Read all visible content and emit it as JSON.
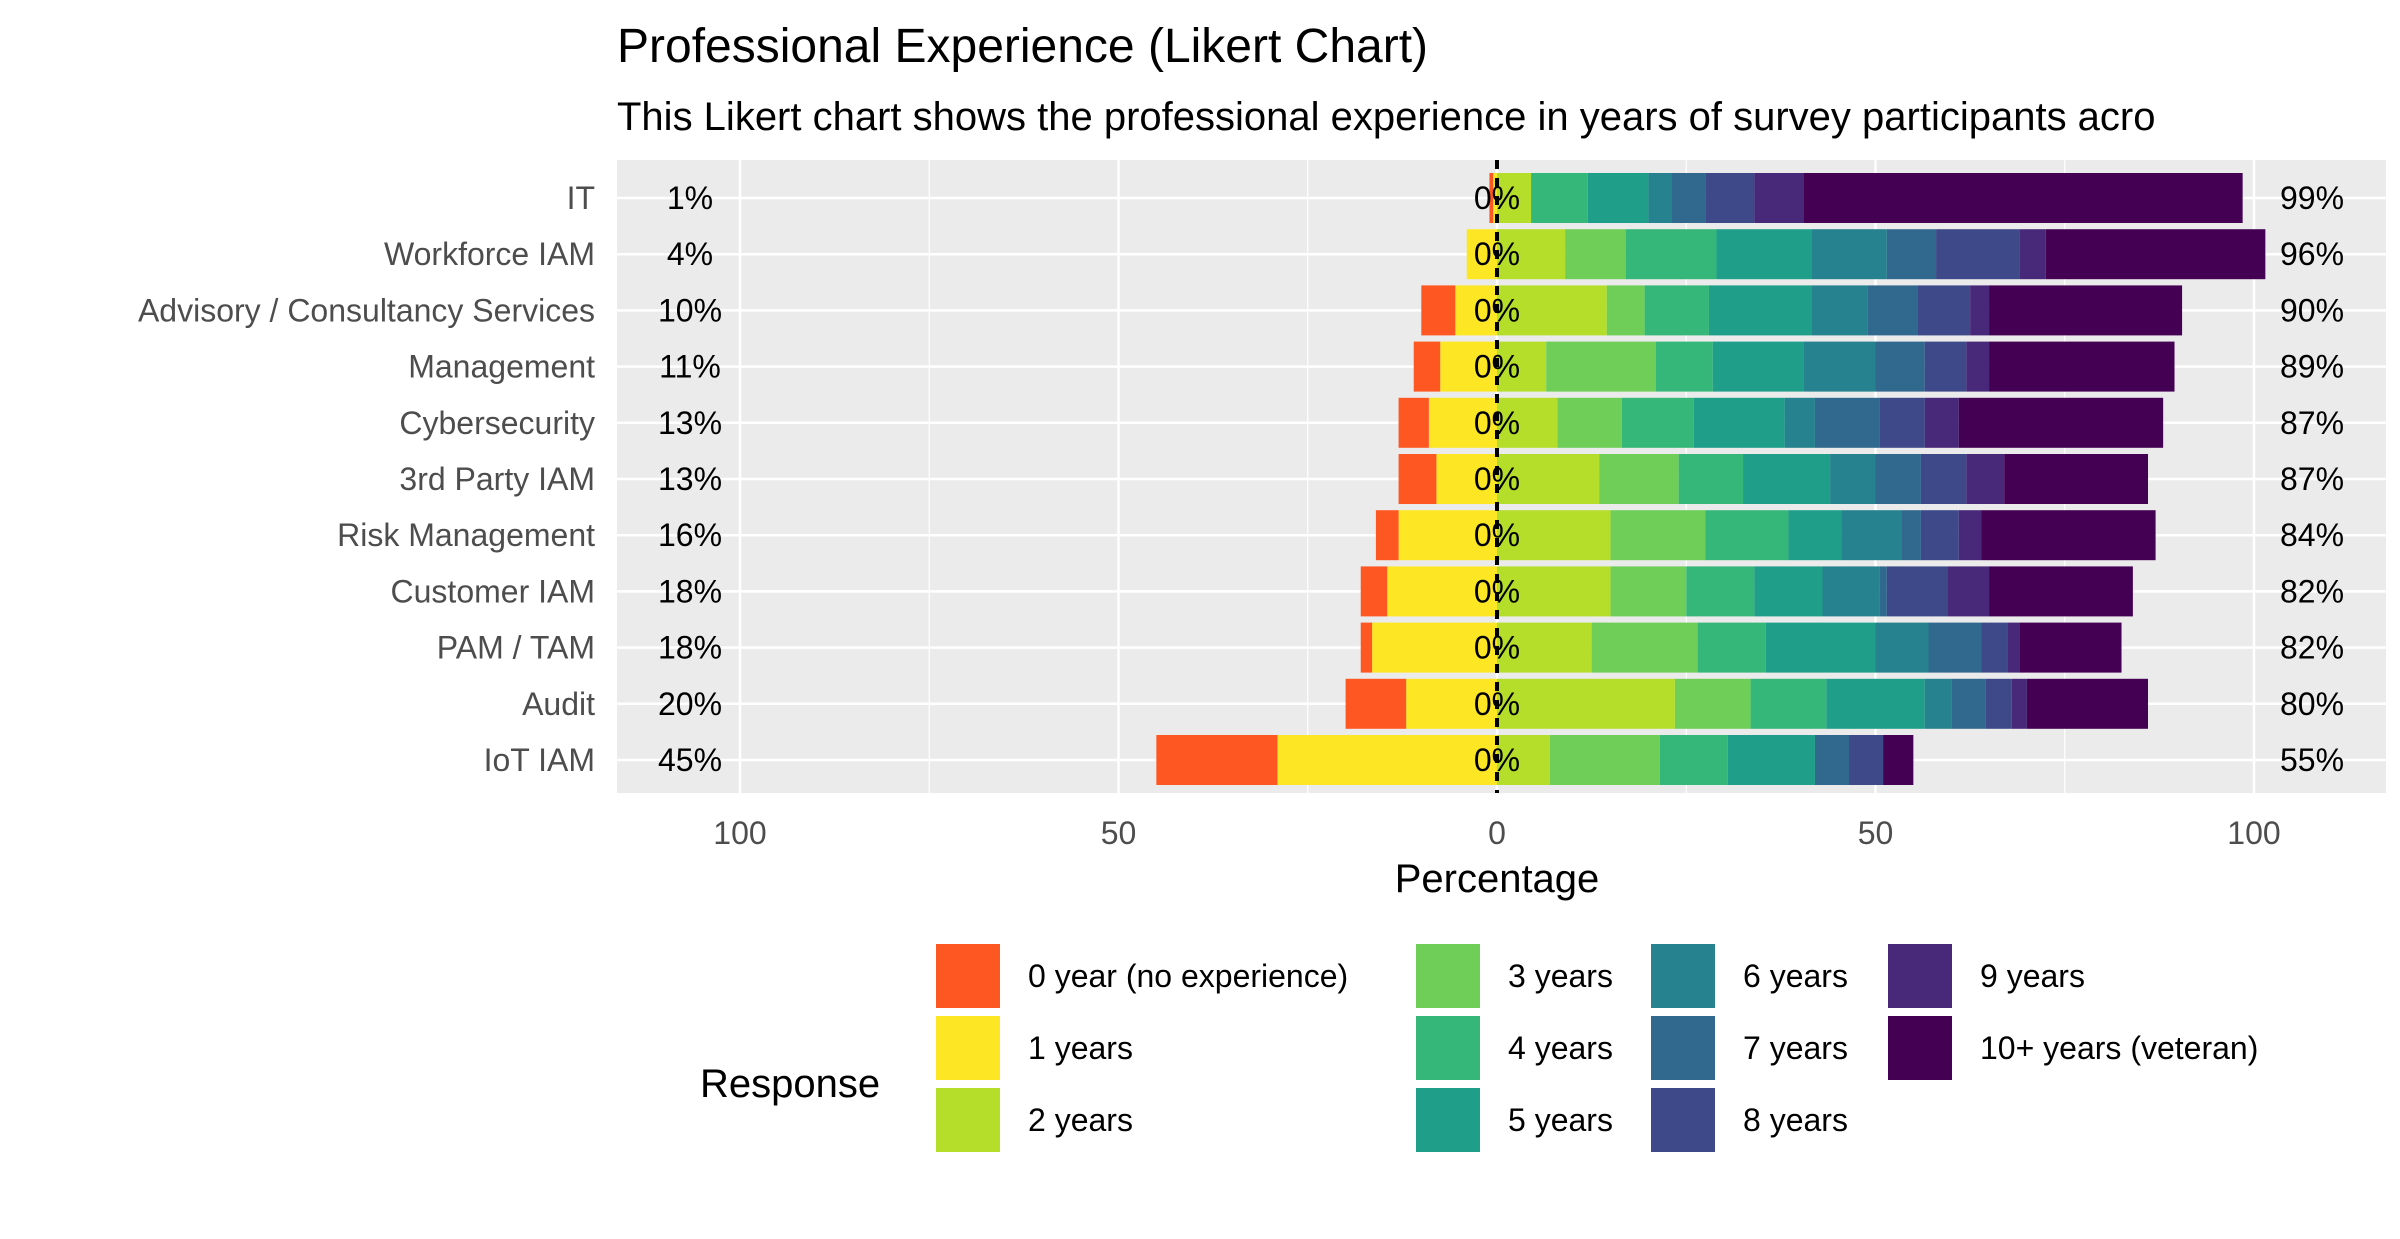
{
  "chart_data": {
    "type": "bar",
    "orientation": "horizontal-diverging-stacked",
    "title": "Professional Experience (Likert Chart)",
    "subtitle": "This Likert chart shows the professional experience in years of survey participants acro",
    "xlabel": "Percentage",
    "xlim": [
      -112,
      112
    ],
    "x_ticks": [
      -100,
      -50,
      0,
      50,
      100
    ],
    "x_tick_labels": [
      "100",
      "50",
      "0",
      "50",
      "100"
    ],
    "grid": true,
    "legend": {
      "title": "Response",
      "position": "bottom",
      "entries": [
        "0 year (no experience)",
        "1 years",
        "2 years",
        "3 years",
        "4 years",
        "5 years",
        "6 years",
        "7 years",
        "8 years",
        "9 years",
        "10+ years (veteran)"
      ]
    },
    "colors": [
      "#FF5722",
      "#FDE725",
      "#B5DE2B",
      "#6ECE58",
      "#35B779",
      "#1F9E89",
      "#26828E",
      "#31688E",
      "#3E4989",
      "#482878",
      "#440154"
    ],
    "categories": [
      "IT",
      "Workforce IAM",
      "Advisory / Consultancy Services",
      "Management",
      "Cybersecurity",
      "3rd Party IAM",
      "Risk Management",
      "Customer IAM",
      "PAM / TAM",
      "Audit",
      "IoT IAM"
    ],
    "left_labels": [
      "1%",
      "4%",
      "10%",
      "11%",
      "13%",
      "13%",
      "16%",
      "18%",
      "18%",
      "20%",
      "45%"
    ],
    "center_labels": [
      "0%",
      "0%",
      "0%",
      "0%",
      "0%",
      "0%",
      "0%",
      "0%",
      "0%",
      "0%",
      "0%"
    ],
    "right_labels": [
      "99%",
      "96%",
      "90%",
      "89%",
      "87%",
      "87%",
      "84%",
      "82%",
      "82%",
      "80%",
      "55%"
    ],
    "series": [
      {
        "name": "0 year (no experience)",
        "values": [
          0.5,
          0,
          4.5,
          3.5,
          4,
          5,
          3,
          3.5,
          1.5,
          8,
          16
        ]
      },
      {
        "name": "1 years",
        "values": [
          0.5,
          4,
          5.5,
          7.5,
          9,
          8,
          13,
          14.5,
          16.5,
          12,
          29
        ]
      },
      {
        "name": "2 years",
        "values": [
          4.5,
          9,
          14.5,
          6.5,
          8,
          13.5,
          15,
          15,
          12.5,
          23.5,
          7
        ]
      },
      {
        "name": "3 years",
        "values": [
          0,
          8,
          5,
          14.5,
          8.5,
          10.5,
          12.5,
          10,
          14,
          10,
          14.5
        ]
      },
      {
        "name": "4 years",
        "values": [
          7.5,
          12,
          8.5,
          7.5,
          9.5,
          8.5,
          11,
          9,
          9,
          10,
          9
        ]
      },
      {
        "name": "5 years",
        "values": [
          8,
          12.5,
          13.5,
          12,
          12,
          11.5,
          7,
          9,
          14.5,
          13,
          11.5
        ]
      },
      {
        "name": "6 years",
        "values": [
          3,
          10,
          7.5,
          9.5,
          4,
          6,
          8,
          7.5,
          7,
          3.5,
          0
        ]
      },
      {
        "name": "7 years",
        "values": [
          4.5,
          6.5,
          6.5,
          6.5,
          8.5,
          6,
          2.5,
          1,
          7,
          4.5,
          4.5
        ]
      },
      {
        "name": "8 years",
        "values": [
          6.5,
          11,
          7,
          5.5,
          6,
          6,
          5,
          8,
          3.5,
          3.5,
          4.5
        ]
      },
      {
        "name": "9 years",
        "values": [
          6.5,
          3.5,
          2.5,
          3,
          4.5,
          5,
          3,
          5.5,
          1.5,
          2,
          0
        ]
      },
      {
        "name": "10+ years (veteran)",
        "values": [
          58,
          29,
          25.5,
          24.5,
          27,
          19,
          23,
          19,
          13.5,
          16,
          4
        ]
      }
    ]
  }
}
